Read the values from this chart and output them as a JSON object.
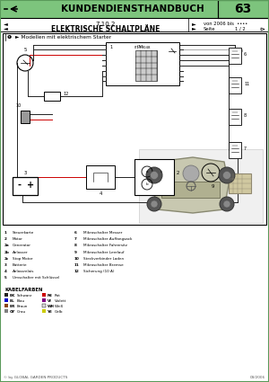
{
  "title": "KUNDENDIENSTHANDBUCH",
  "page_num": "63",
  "section": "7.10.2",
  "section_title": "ELEKTRISCHE SCHALTPLÄNE",
  "von_text": "von 2006 bis  ••••",
  "seite_text": "Seite",
  "page_fraction": "1 / 2",
  "model_label": "❶  ► Modellen mit elektrischem Starter",
  "legend_items": [
    [
      "1",
      "Steuerkarte"
    ],
    [
      "2",
      "Motor"
    ],
    [
      "2a",
      "Generator"
    ],
    [
      "2b",
      "Anlasser"
    ],
    [
      "2c",
      "Stop Motor"
    ],
    [
      "3",
      "Batterie"
    ],
    [
      "4",
      "Anlassrelais"
    ],
    [
      "5",
      "Umschalter mit Schlüssel"
    ],
    [
      "6",
      "Mikroschalter Messer"
    ],
    [
      "7",
      "Mikroschalter Auffangsack"
    ],
    [
      "8",
      "Mikroschalter Fahrersitz"
    ],
    [
      "9",
      "Mikroschalter Leerlauf"
    ],
    [
      "10",
      "Steckverbinder Laden"
    ],
    [
      "11",
      "Mikroschalter Bremse"
    ],
    [
      "12",
      "Sicherung (10 A)"
    ]
  ],
  "cable_title": "KABELFARBEN",
  "cable_colors": [
    [
      "BK",
      "Schwarz",
      "#222222"
    ],
    [
      "BL",
      "Blau",
      "#0000cc"
    ],
    [
      "BR",
      "Braun",
      "#8B4513"
    ],
    [
      "GY",
      "Grau",
      "#808080"
    ],
    [
      "RE",
      "Rot",
      "#cc0000"
    ],
    [
      "VI",
      "Violett",
      "#800080"
    ],
    [
      "WH",
      "Weiß",
      "#dddddd"
    ],
    [
      "YE",
      "Gelb",
      "#cccc00"
    ]
  ],
  "footer_left": "© by GLOBAL GARDEN PRODUCTS",
  "footer_right": "03/2006",
  "header_bg": "#7dc47d",
  "border_color": "#5a9a5a",
  "bg_color": "#ffffff",
  "diagram_bg": "#f5f5f5"
}
